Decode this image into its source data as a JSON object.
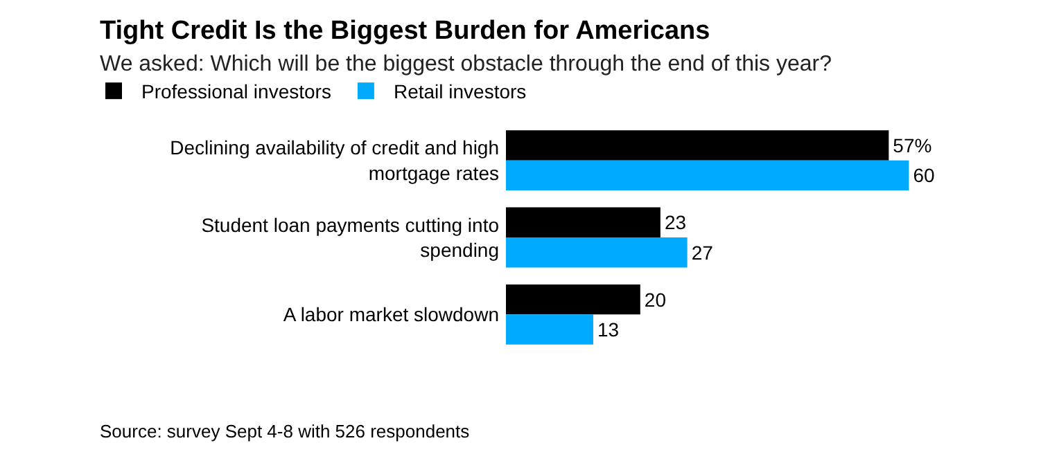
{
  "chart_data": {
    "type": "bar",
    "orientation": "horizontal",
    "title": "Tight Credit Is the Biggest Burden for Americans",
    "subtitle": "We asked: Which will be the biggest obstacle through the end of this year?",
    "categories": [
      "Declining availability of credit and high mortgage rates",
      "Student loan payments cutting into spending",
      "A labor market slowdown"
    ],
    "series": [
      {
        "name": "Professional investors",
        "color": "#000000",
        "values": [
          57,
          23,
          20
        ],
        "value_labels": [
          "57%",
          "23",
          "20"
        ]
      },
      {
        "name": "Retail investors",
        "color": "#00aaff",
        "values": [
          60,
          27,
          13
        ],
        "value_labels": [
          "60",
          "27",
          "13"
        ]
      }
    ],
    "legend": "top left",
    "annotations": [
      "Source: survey Sept 4-8 with 526 respondents"
    ]
  }
}
